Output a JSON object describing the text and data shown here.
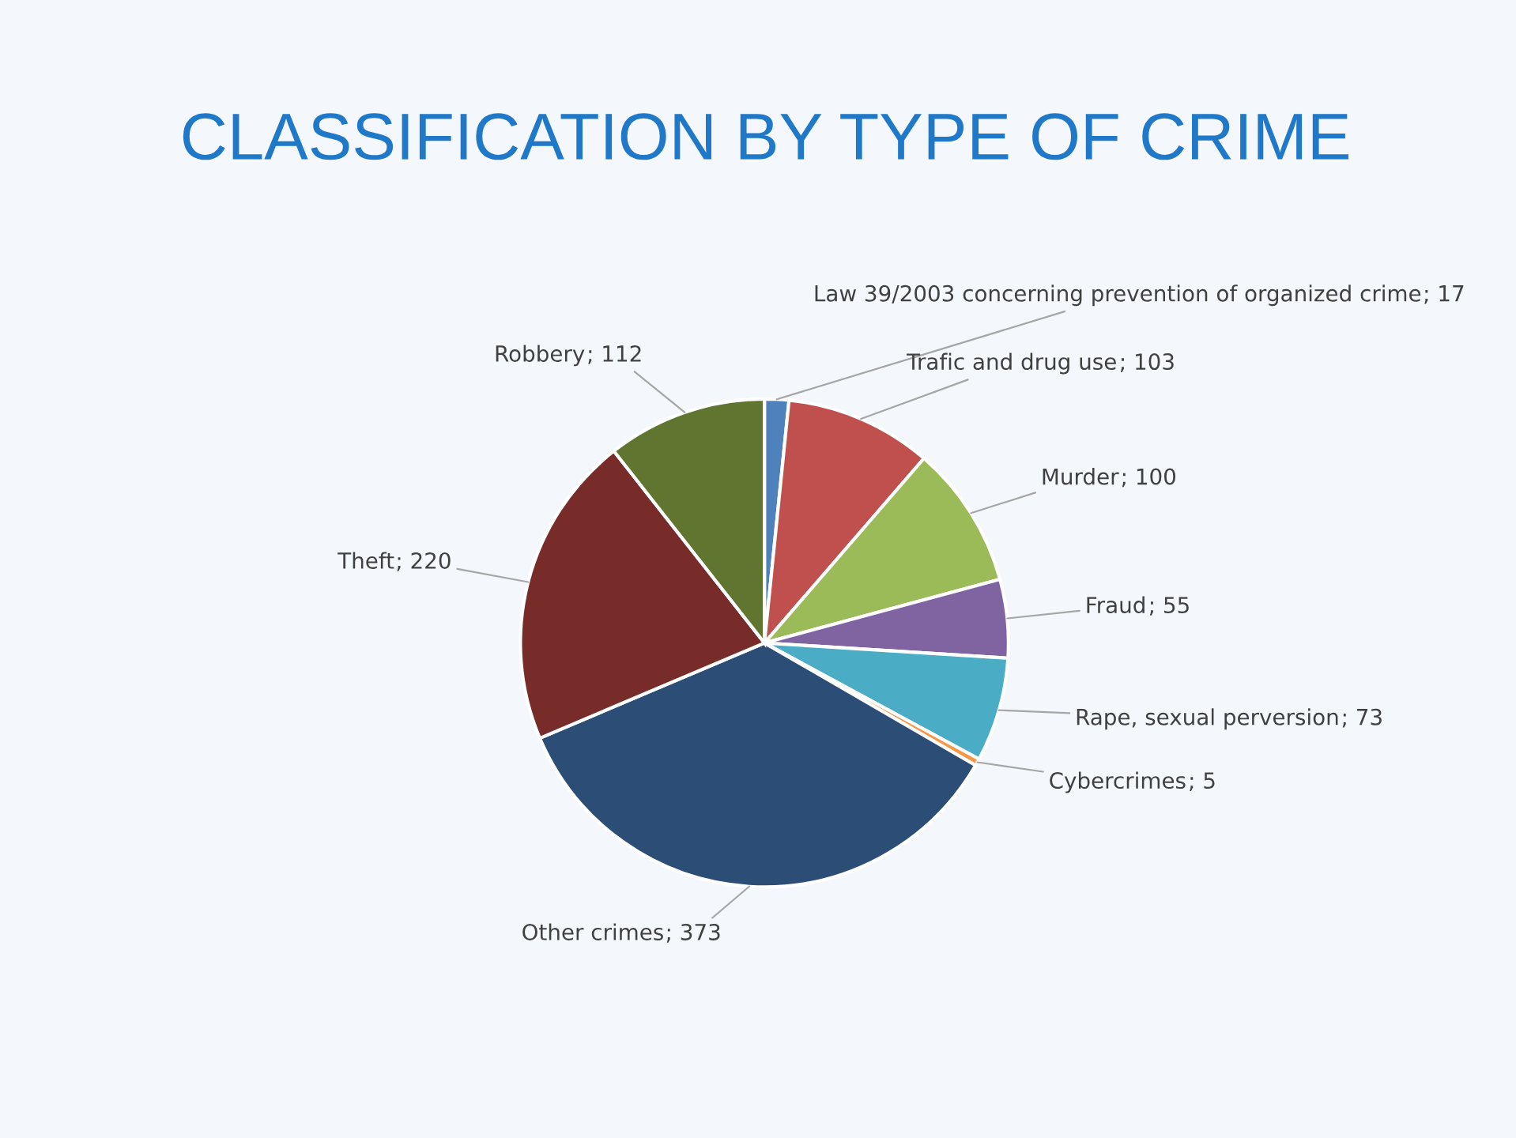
{
  "chart_data": {
    "type": "pie",
    "title": "CLASSIFICATION BY TYPE OF CRIME",
    "categories": [
      "Law 39/2003 concerning prevention of organized crime",
      "Trafic and drug use",
      "Murder",
      "Fraud",
      "Rape, sexual perversion",
      "Cybercrimes",
      "Other crimes",
      "Theft",
      "Robbery"
    ],
    "values": [
      17,
      103,
      100,
      55,
      73,
      5,
      373,
      220,
      112
    ],
    "colors": [
      "#4f81bd",
      "#c0504d",
      "#9bbb59",
      "#8064a2",
      "#4bacc6",
      "#f79646",
      "#2c4d75",
      "#772c2a",
      "#5f7530"
    ],
    "value_labels": [
      "; 17",
      "; 103",
      "; 100",
      "; 55",
      "; 73",
      "; 5",
      "; 373",
      "; 220",
      "; 112"
    ]
  }
}
